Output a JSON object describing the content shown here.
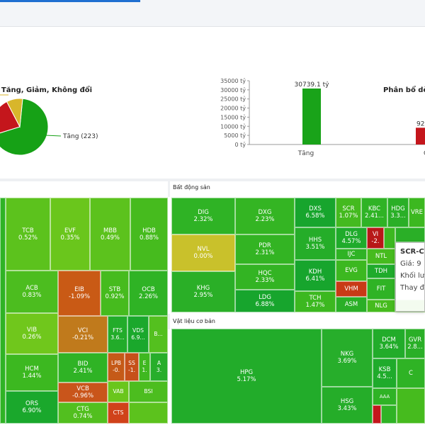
{
  "header": {
    "active_tab_color": "#1f6fd1"
  },
  "pie": {
    "title": "Tăng, Giảm, Không đổi",
    "label": "Tăng (223)",
    "chart_data": {
      "type": "pie",
      "slices": [
        {
          "name": "Tăng",
          "value": 223,
          "color": "#16a116"
        },
        {
          "name": "Giảm",
          "value": 72,
          "color": "#c4161c"
        },
        {
          "name": "Không đổi",
          "value": 30,
          "color": "#d8b62b"
        }
      ]
    }
  },
  "bars": {
    "title": "Phân bổ dò",
    "y_ticks": [
      "35000 tỷ",
      "30000 tỷ",
      "25000 tỷ",
      "20000 tỷ",
      "15000 tỷ",
      "10000 tỷ",
      "5000 tỷ",
      "0 tỷ"
    ],
    "categories": [
      "Tăng"
    ],
    "value_labels": [
      "30739.1 tỷ",
      "92"
    ],
    "partial_category": "C",
    "chart_data": {
      "type": "bar",
      "ylim": [
        0,
        35000
      ],
      "values": [
        30739.1,
        9200
      ]
    }
  },
  "sections": {
    "bds": "Bất động sản",
    "vlcb": "Vật liệu cơ bản"
  },
  "tooltip": {
    "line1": "SCR-CT",
    "line2": "Giá: 9",
    "line3": "Khối lư",
    "line4": "Thay đ"
  },
  "cells": [
    {
      "n": "TCB",
      "v": "0.52%",
      "c": "#5cc21d"
    },
    {
      "n": "EVF",
      "v": "0.35%",
      "c": "#6ac61c"
    },
    {
      "n": "MBB",
      "v": "0.49%",
      "c": "#5cc21d"
    },
    {
      "n": "HDB",
      "v": "0.88%",
      "c": "#46bb1e"
    },
    {
      "n": "ACB",
      "v": "0.83%",
      "c": "#4cbd1f"
    },
    {
      "n": "EIB",
      "v": "-1.09%",
      "c": "#c95a15"
    },
    {
      "n": "STB",
      "v": "0.92%",
      "c": "#46bb1e"
    },
    {
      "n": "OCB",
      "v": "2.26%",
      "c": "#2fb325"
    },
    {
      "n": "VIB",
      "v": "0.26%",
      "c": "#70c71c"
    },
    {
      "n": "VCI",
      "v": "-0.21%",
      "c": "#c07a1c"
    },
    {
      "n": "FTS",
      "v": "3.6...",
      "c": "#22ac2a"
    },
    {
      "n": "VDS",
      "v": "6.9...",
      "c": "#1aa82c"
    },
    {
      "n": "B...",
      "v": "",
      "c": "#54c01f"
    },
    {
      "n": "HCM",
      "v": "1.44%",
      "c": "#3cb820"
    },
    {
      "n": "BID",
      "v": "2.41%",
      "c": "#2fb325"
    },
    {
      "n": "ORS",
      "v": "6.90%",
      "c": "#1aa82c"
    },
    {
      "n": "VCB",
      "v": "-0.96%",
      "c": "#c9551b"
    },
    {
      "n": "LPB",
      "v": "-0.",
      "c": "#c55a18"
    },
    {
      "n": "SS",
      "v": "-1.",
      "c": "#c6501a"
    },
    {
      "n": "E",
      "v": "1.",
      "c": "#3fb820"
    },
    {
      "n": "A",
      "v": "3.",
      "c": "#27ae2b"
    },
    {
      "n": "VAB",
      "v": "",
      "c": "#6ac61c"
    },
    {
      "n": "BSI",
      "v": "",
      "c": "#4cbd1f"
    },
    {
      "n": "CTG",
      "v": "0.74%",
      "c": "#52bf1f"
    },
    {
      "n": "CTS",
      "v": "",
      "c": "#d0421a"
    },
    {
      "n": "DIG",
      "v": "2.32%",
      "c": "#2fb325"
    },
    {
      "n": "DXG",
      "v": "2.23%",
      "c": "#34b523"
    },
    {
      "n": "DXS",
      "v": "6.58%",
      "c": "#17a52d"
    },
    {
      "n": "SCR",
      "v": "1.07%",
      "c": "#44ba1f"
    },
    {
      "n": "KBC",
      "v": "2.41...",
      "c": "#2fb325"
    },
    {
      "n": "HDG",
      "v": "3.3...",
      "c": "#2aaf27"
    },
    {
      "n": "VRE",
      "v": "",
      "c": "#3cb820"
    },
    {
      "n": "NVL",
      "v": "0.00%",
      "c": "#c9c12b"
    },
    {
      "n": "PDR",
      "v": "2.31%",
      "c": "#33b423"
    },
    {
      "n": "HHS",
      "v": "3.51%",
      "c": "#25ad29"
    },
    {
      "n": "DLG",
      "v": "4.57%",
      "c": "#1fab2b"
    },
    {
      "n": "VI",
      "v": "-2.",
      "c": "#b81818"
    },
    {
      "n": "IJC",
      "v": "",
      "c": "#2fb325"
    },
    {
      "n": "HQC",
      "v": "2.33%",
      "c": "#33b423"
    },
    {
      "n": "KDH",
      "v": "6.41%",
      "c": "#17a52d"
    },
    {
      "n": "EVG",
      "v": "",
      "c": "#3cb820"
    },
    {
      "n": "NTL",
      "v": "",
      "c": "#46bb1e"
    },
    {
      "n": "TDH",
      "v": "",
      "c": "#1fab2b"
    },
    {
      "n": "KHG",
      "v": "2.95%",
      "c": "#2aaf27"
    },
    {
      "n": "LDG",
      "v": "6.88%",
      "c": "#17a52d"
    },
    {
      "n": "TCH",
      "v": "1.47%",
      "c": "#3cb820"
    },
    {
      "n": "VHM",
      "v": "",
      "c": "#c83a16"
    },
    {
      "n": "FIT",
      "v": "",
      "c": "#2fb325"
    },
    {
      "n": "ASM",
      "v": "",
      "c": "#2aaf27"
    },
    {
      "n": "NLG",
      "v": "",
      "c": "#46bb1e"
    },
    {
      "n": "HPG",
      "v": "5.17%",
      "c": "#22ac2a"
    },
    {
      "n": "NKG",
      "v": "3.69%",
      "c": "#27ae2b"
    },
    {
      "n": "DCM",
      "v": "3.64%",
      "c": "#22ac2a"
    },
    {
      "n": "GVR",
      "v": "2.8...",
      "c": "#2aaf27"
    },
    {
      "n": "KSB",
      "v": "4.5...",
      "c": "#1fab2b"
    },
    {
      "n": "C",
      "v": "",
      "c": "#2fb325"
    },
    {
      "n": "HSG",
      "v": "3.43%",
      "c": "#25ad29"
    },
    {
      "n": "AAA",
      "v": "",
      "c": "#2fb325"
    }
  ]
}
